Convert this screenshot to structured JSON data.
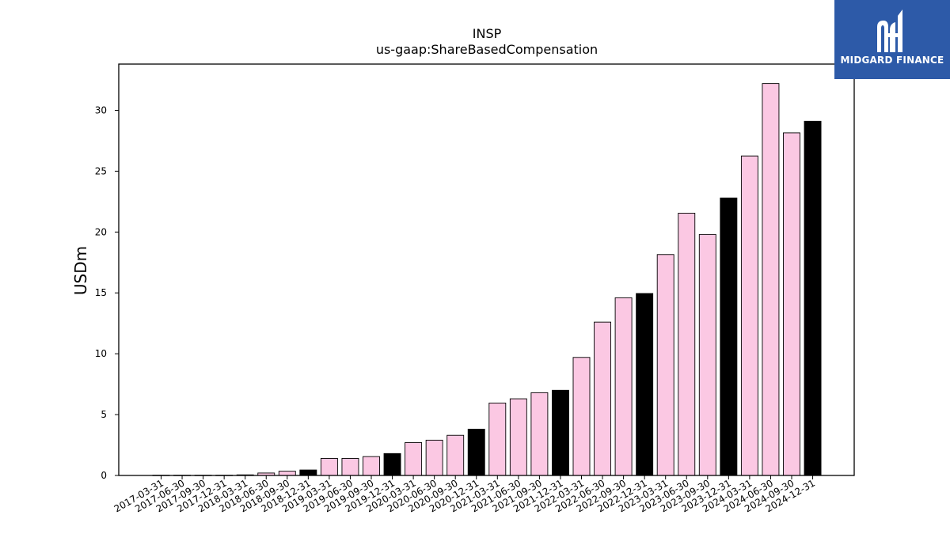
{
  "chart_data": {
    "type": "bar",
    "title": "INSP",
    "subtitle": "us-gaap:ShareBasedCompensation",
    "ylabel": "USDm",
    "xlabel": "",
    "ylim": [
      0,
      33.8
    ],
    "yticks": [
      0,
      5,
      10,
      15,
      20,
      25,
      30
    ],
    "categories": [
      "2017-03-31",
      "2017-06-30",
      "2017-09-30",
      "2017-12-31",
      "2018-03-31",
      "2018-06-30",
      "2018-09-30",
      "2018-12-31",
      "2019-03-31",
      "2019-06-30",
      "2019-09-30",
      "2019-12-31",
      "2020-03-31",
      "2020-06-30",
      "2020-09-30",
      "2020-12-31",
      "2021-03-31",
      "2021-06-30",
      "2021-09-30",
      "2021-12-31",
      "2022-03-31",
      "2022-06-30",
      "2022-09-30",
      "2022-12-31",
      "2023-03-31",
      "2023-06-30",
      "2023-09-30",
      "2023-12-31",
      "2024-03-31",
      "2024-06-30",
      "2024-09-30",
      "2024-12-31"
    ],
    "values": [
      0.02,
      0.02,
      0.02,
      0.02,
      0.05,
      0.2,
      0.35,
      0.45,
      1.4,
      1.4,
      1.55,
      1.8,
      2.7,
      2.9,
      3.3,
      3.8,
      5.95,
      6.3,
      6.8,
      7.0,
      9.7,
      12.6,
      14.6,
      14.95,
      18.15,
      21.55,
      19.8,
      22.8,
      26.25,
      32.2,
      28.15,
      29.1
    ],
    "fiscal_year_end": [
      false,
      false,
      false,
      true,
      false,
      false,
      false,
      true,
      false,
      false,
      false,
      true,
      false,
      false,
      false,
      true,
      false,
      false,
      false,
      true,
      false,
      false,
      false,
      true,
      false,
      false,
      false,
      true,
      false,
      false,
      false,
      true
    ],
    "colors": {
      "quarter": "#fbc8e3",
      "year_end": "#000000",
      "edge": "#000000"
    },
    "grid": false,
    "legend": "none"
  },
  "logo": {
    "text": "MIDGARD FINANCE",
    "background": "#2d5aa8",
    "icon": "midgard-m-logo-icon"
  }
}
